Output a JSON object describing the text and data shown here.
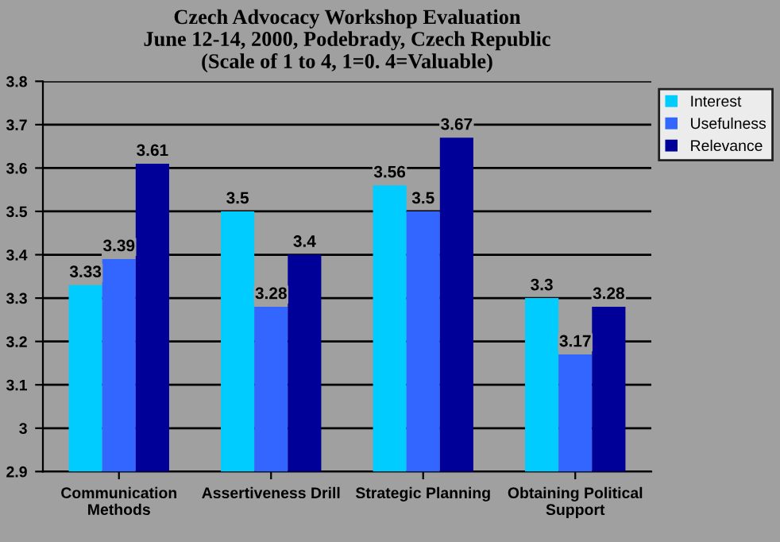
{
  "chart_data": {
    "type": "bar",
    "title": "Czech Advocacy Workshop Evaluation\nJune 12-14, 2000, Podebrady, Czech Republic\n(Scale of 1 to 4, 1=0. 4=Valuable)",
    "categories": [
      "Communication\nMethods",
      "Assertiveness Drill",
      "Strategic Planning",
      "Obtaining Political\nSupport"
    ],
    "series": [
      {
        "name": "Interest",
        "color": "#00ccff",
        "values": [
          3.33,
          3.5,
          3.56,
          3.3
        ]
      },
      {
        "name": "Usefulness",
        "color": "#3366ff",
        "values": [
          3.39,
          3.28,
          3.5,
          3.17
        ]
      },
      {
        "name": "Relevance",
        "color": "#000099",
        "values": [
          3.61,
          3.4,
          3.67,
          3.28
        ]
      }
    ],
    "ylim": [
      2.9,
      3.8
    ],
    "yticks": [
      {
        "value": 2.9,
        "label": "2.9"
      },
      {
        "value": 3,
        "label": "3"
      },
      {
        "value": 3.1,
        "label": "3.1"
      },
      {
        "value": 3.2,
        "label": "3.2"
      },
      {
        "value": 3.3,
        "label": "3.3"
      },
      {
        "value": 3.4,
        "label": "3.4"
      },
      {
        "value": 3.5,
        "label": "3.5"
      },
      {
        "value": 3.6,
        "label": "3.6"
      },
      {
        "value": 3.7,
        "label": "3.7"
      },
      {
        "value": 3.8,
        "label": "3.8"
      }
    ],
    "grid": "y",
    "legend": "top right",
    "data_labels": true
  }
}
